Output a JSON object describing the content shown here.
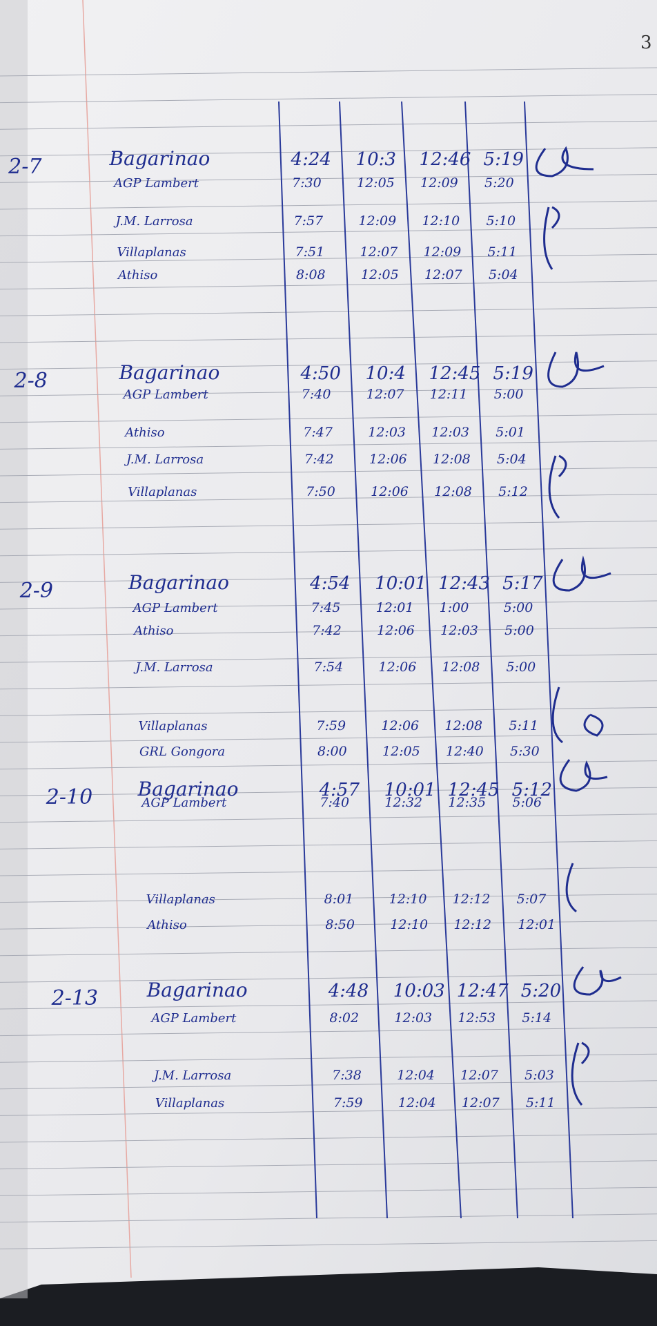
{
  "page_number": "3",
  "entries": [
    {
      "date": "2-7",
      "rows": [
        {
          "name": "Bagarinao",
          "times": [
            "4:24",
            "10:3",
            "12:46",
            "5:19"
          ]
        },
        {
          "name": "AGP Lambert",
          "times": [
            "7:30",
            "12:05",
            "12:09",
            "5:20"
          ]
        },
        {
          "name": "J.M. Larrosa",
          "times": [
            "7:57",
            "12:09",
            "12:10",
            "5:10"
          ]
        },
        {
          "name": "Villaplanas",
          "times": [
            "7:51",
            "12:07",
            "12:09",
            "5:11"
          ]
        },
        {
          "name": "Athiso",
          "times": [
            "8:08",
            "12:05",
            "12:07",
            "5:04"
          ]
        }
      ]
    },
    {
      "date": "2-8",
      "rows": [
        {
          "name": "Bagarinao",
          "times": [
            "4:50",
            "10:4",
            "12:45",
            "5:19"
          ]
        },
        {
          "name": "AGP Lambert",
          "times": [
            "7:40",
            "12:07",
            "12:11",
            "5:00"
          ]
        },
        {
          "name": "Athiso",
          "times": [
            "7:47",
            "12:03",
            "12:03",
            "5:01"
          ]
        },
        {
          "name": "J.M. Larrosa",
          "times": [
            "7:42",
            "12:06",
            "12:08",
            "5:04"
          ]
        },
        {
          "name": "Villaplanas",
          "times": [
            "7:50",
            "12:06",
            "12:08",
            "5:12"
          ]
        }
      ]
    },
    {
      "date": "2-9",
      "rows": [
        {
          "name": "Bagarinao",
          "times": [
            "4:54",
            "10:01",
            "12:43",
            "5:17"
          ]
        },
        {
          "name": "AGP Lambert",
          "times": [
            "7:45",
            "12:01",
            "1:00",
            "5:00"
          ]
        },
        {
          "name": "Athiso",
          "times": [
            "7:42",
            "12:06",
            "12:03",
            "5:00"
          ]
        },
        {
          "name": "J.M. Larrosa",
          "times": [
            "7:54",
            "12:06",
            "12:08",
            "5:00"
          ]
        },
        {
          "name": "Villaplanas",
          "times": [
            "7:59",
            "12:06",
            "12:08",
            "5:11"
          ]
        },
        {
          "name": "GRL Gongora",
          "times": [
            "8:00",
            "12:05",
            "12:40",
            "5:30"
          ]
        }
      ]
    },
    {
      "date": "2-10",
      "rows": [
        {
          "name": "Bagarinao",
          "times": [
            "4:57",
            "10:01",
            "12:45",
            "5:12"
          ]
        },
        {
          "name": "AGP Lambert",
          "times": [
            "7:40",
            "12:32",
            "12:35",
            "5:06"
          ]
        },
        {
          "name": "Villaplanas",
          "times": [
            "8:01",
            "12:10",
            "12:12",
            "5:07"
          ]
        },
        {
          "name": "Athiso",
          "times": [
            "8:50",
            "12:10",
            "12:12",
            "12:01"
          ]
        }
      ]
    },
    {
      "date": "2-13",
      "rows": [
        {
          "name": "Bagarinao",
          "times": [
            "4:48",
            "10:03",
            "12:47",
            "5:20"
          ]
        },
        {
          "name": "AGP Lambert",
          "times": [
            "8:02",
            "12:03",
            "12:53",
            "5:14"
          ]
        },
        {
          "name": "J.M. Larrosa",
          "times": [
            "7:38",
            "12:04",
            "12:07",
            "5:03"
          ]
        },
        {
          "name": "Villaplanas",
          "times": [
            "7:59",
            "12:04",
            "12:07",
            "5:11"
          ]
        }
      ]
    }
  ]
}
